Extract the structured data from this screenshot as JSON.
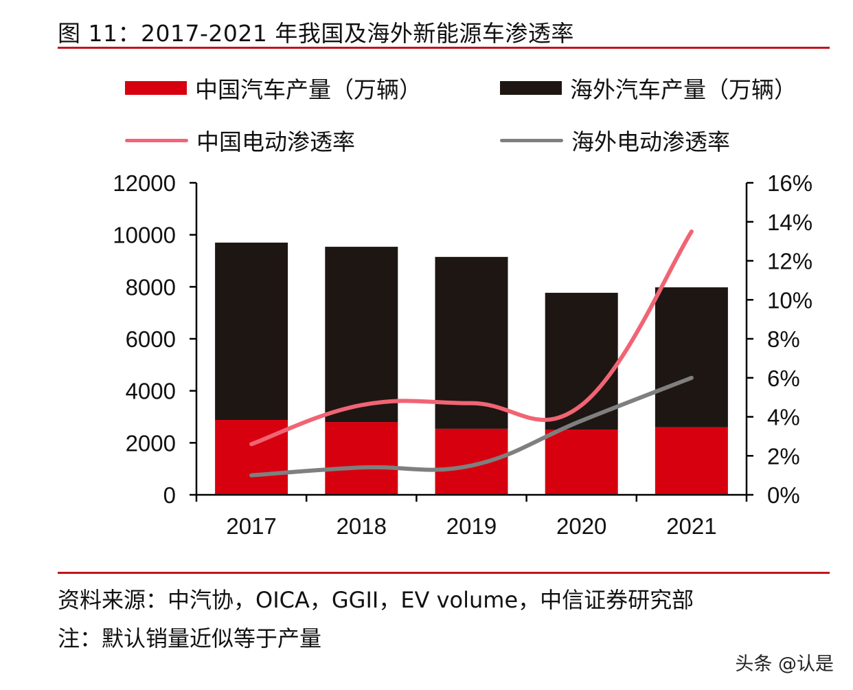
{
  "title": "图 11：2017-2021 年我国及海外新能源车渗透率",
  "chart_data": {
    "type": "bar",
    "stacked": true,
    "title": "图 11：2017-2021 年我国及海外新能源车渗透率",
    "categories": [
      "2017",
      "2018",
      "2019",
      "2020",
      "2021"
    ],
    "series": [
      {
        "name": "中国汽车产量（万辆）",
        "type": "bar",
        "axis": "left",
        "color": "#d7000f",
        "values": [
          2880,
          2800,
          2540,
          2510,
          2600
        ]
      },
      {
        "name": "海外汽车产量（万辆）",
        "type": "bar",
        "axis": "left",
        "color": "#1e1613",
        "values": [
          6820,
          6740,
          6610,
          5260,
          5380
        ]
      },
      {
        "name": "中国电动渗透率",
        "type": "line",
        "axis": "right",
        "color": "#f06474",
        "values": [
          2.6,
          4.6,
          4.7,
          4.6,
          13.5
        ]
      },
      {
        "name": "海外电动渗透率",
        "type": "line",
        "axis": "right",
        "color": "#7f7f7f",
        "values": [
          1.0,
          1.4,
          1.5,
          3.8,
          6.0
        ]
      }
    ],
    "ylim": [
      0,
      12000
    ],
    "yticks": [
      "0",
      "2000",
      "4000",
      "6000",
      "8000",
      "10000",
      "12000"
    ],
    "y2lim": [
      0,
      16
    ],
    "y2ticks": [
      "0%",
      "2%",
      "4%",
      "6%",
      "8%",
      "10%",
      "12%",
      "14%",
      "16%"
    ],
    "xlabel": "",
    "ylabel": "",
    "y2label": "",
    "grid": false,
    "legend_position": "top"
  },
  "legend": [
    {
      "label": "中国汽车产量（万辆）",
      "kind": "bar",
      "color": "#d7000f"
    },
    {
      "label": "海外汽车产量（万辆）",
      "kind": "bar",
      "color": "#1e1613"
    },
    {
      "label": "中国电动渗透率",
      "kind": "line",
      "color": "#f06474"
    },
    {
      "label": "海外电动渗透率",
      "kind": "line",
      "color": "#7f7f7f"
    }
  ],
  "source": "资料来源：中汽协，OICA，GGII，EV volume，中信证券研究部",
  "note": "注：默认销量近似等于产量",
  "watermark": "头条 @认是",
  "colors": {
    "accent_rule": "#c0141c"
  }
}
